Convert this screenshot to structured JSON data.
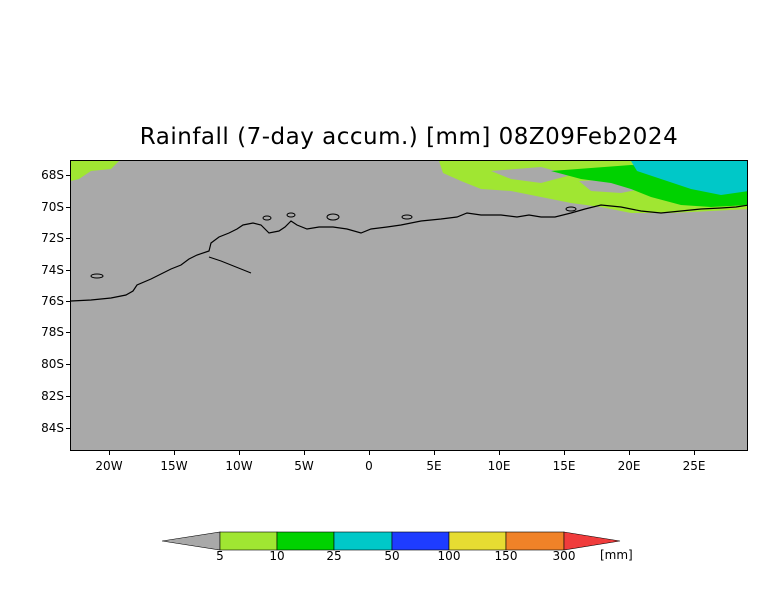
{
  "title": "Rainfall (7-day accum.) [mm] 08Z09Feb2024",
  "map": {
    "latitude_labels": [
      "68S",
      "70S",
      "72S",
      "74S",
      "76S",
      "78S",
      "80S",
      "82S",
      "84S"
    ],
    "longitude_labels": [
      "20W",
      "15W",
      "10W",
      "5W",
      "0",
      "5E",
      "10E",
      "15E",
      "20E",
      "25E"
    ],
    "region": "Antarctica coast (Dronning Maud Land)",
    "land_color": "#a9a9a9",
    "coastline_color": "#000000"
  },
  "legend": {
    "thresholds": [
      "5",
      "10",
      "25",
      "50",
      "100",
      "150",
      "300"
    ],
    "unit": "[mm]",
    "colors": [
      "#a9a9a9",
      "#a0e632",
      "#00d200",
      "#00c8c8",
      "#1e3cff",
      "#e6dc32",
      "#f08228",
      "#f03c3c"
    ]
  }
}
